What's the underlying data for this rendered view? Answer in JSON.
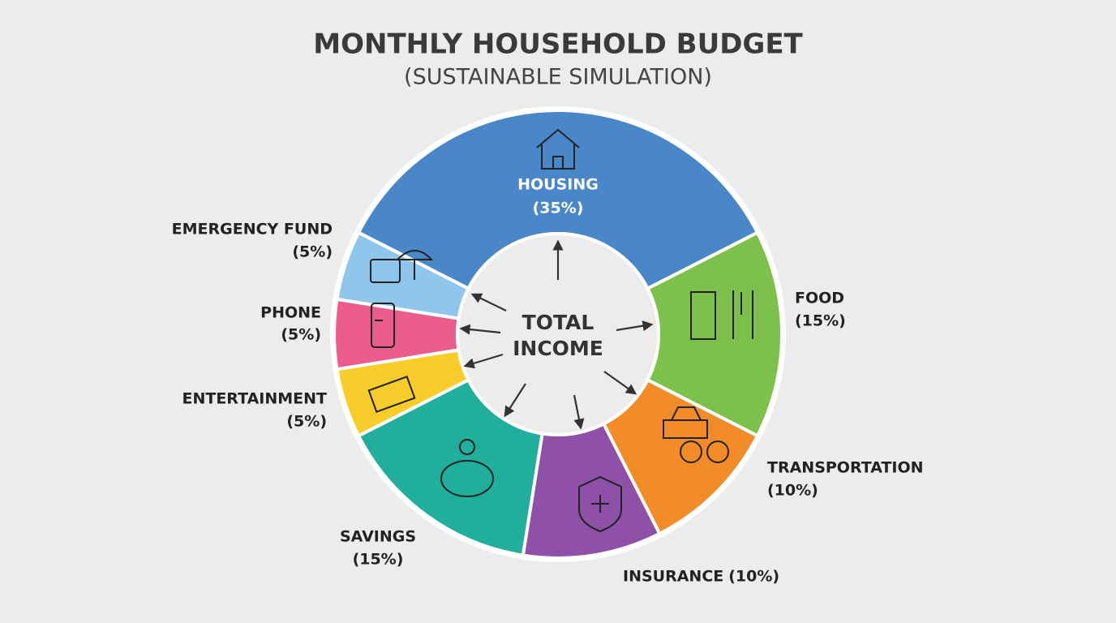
{
  "chart_data": {
    "type": "donut",
    "title": "MONTHLY HOUSEHOLD BUDGET",
    "subtitle": "(SUSTAINABLE SIMULATION)",
    "center_label": "TOTAL INCOME",
    "categories": [
      "HOUSING",
      "FOOD",
      "TRANSPORTATION",
      "INSURANCE",
      "SAVINGS",
      "ENTERTAINMENT",
      "PHONE",
      "EMERGENCY FUND"
    ],
    "values": [
      35,
      15,
      10,
      10,
      15,
      5,
      5,
      5
    ],
    "value_labels": [
      "(35%)",
      "(15%)",
      "(10%)",
      "(10%)",
      "(15%)",
      "(5%)",
      "(5%)",
      "(5%)"
    ],
    "colors": [
      "#4a87c9",
      "#7dc04b",
      "#f28c28",
      "#8f50a8",
      "#21ae9d",
      "#f7cc2b",
      "#ec5d8f",
      "#90c6ec"
    ]
  }
}
